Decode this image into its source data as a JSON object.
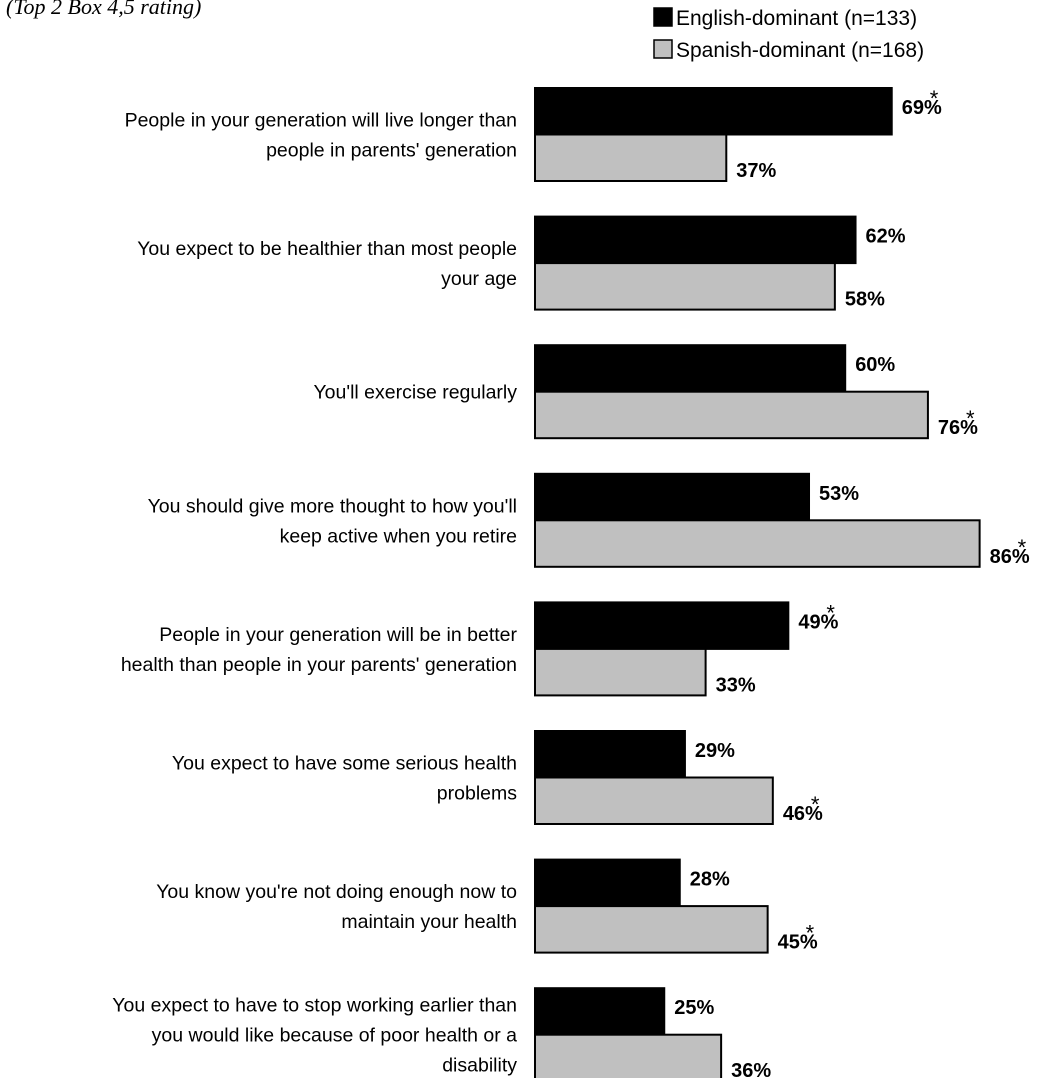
{
  "subtitle": "(Top 2 Box 4,5 rating)",
  "chart_data": {
    "type": "bar",
    "orientation": "horizontal",
    "subtitle": "(Top 2 Box 4,5 rating)",
    "legend_position": "top-right",
    "series": [
      {
        "name": "English-dominant (n=133)",
        "color": "#000000",
        "values": [
          69,
          62,
          60,
          53,
          49,
          29,
          28,
          25
        ],
        "significant": [
          true,
          false,
          false,
          false,
          true,
          false,
          false,
          false
        ]
      },
      {
        "name": "Spanish-dominant (n=168)",
        "color": "#c0c0c0",
        "values": [
          37,
          58,
          76,
          86,
          33,
          46,
          45,
          36
        ],
        "significant": [
          false,
          false,
          true,
          true,
          false,
          true,
          true,
          false
        ]
      }
    ],
    "categories": [
      [
        "People in your generation will live longer than",
        "people in parents' generation"
      ],
      [
        "You expect to be healthier than most people",
        "your age"
      ],
      [
        "You'll exercise regularly"
      ],
      [
        "You should give more thought to how you'll",
        "keep active when you retire"
      ],
      [
        "People in your generation will be in better",
        "health than people in your parents' generation"
      ],
      [
        "You expect to have some serious health",
        "problems"
      ],
      [
        "You know you're not doing enough now to",
        "maintain your health"
      ],
      [
        "You expect to have to stop working earlier than",
        "you would like because of poor health or a",
        "disability"
      ]
    ],
    "value_suffix": "%",
    "significance_marker": "*",
    "xlim": [
      0,
      100
    ],
    "grid": false
  }
}
